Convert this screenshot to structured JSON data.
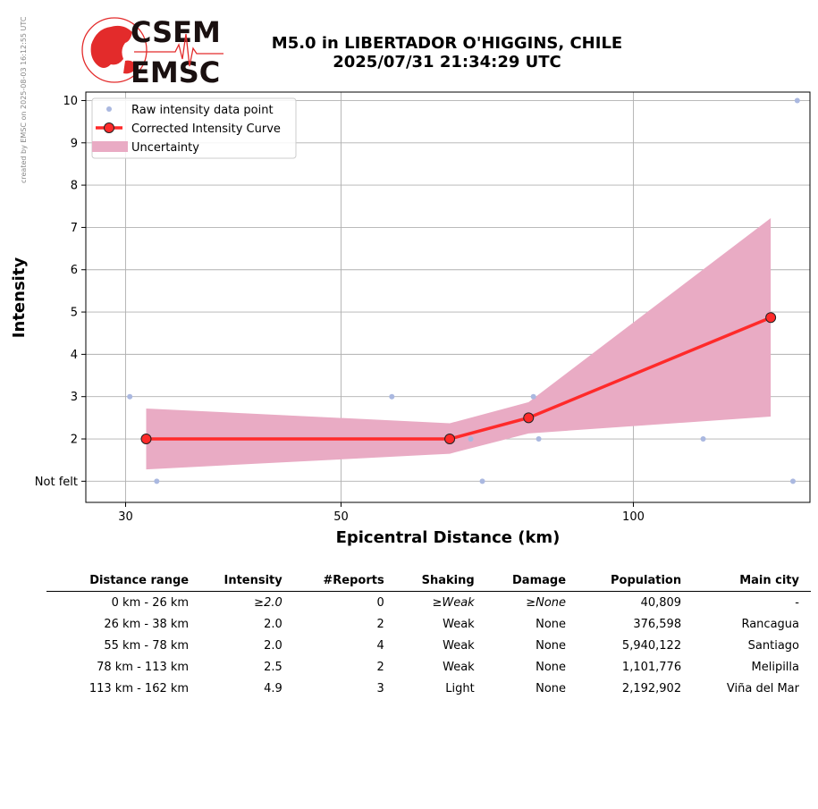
{
  "credit": "created by EMSC on 2025-08-03 16:12:55 UTC",
  "logo": {
    "top": "CSEM",
    "bottom": "EMSC",
    "accent": "#e32b2b"
  },
  "title": {
    "line1": "M5.0 in LIBERTADOR O'HIGGINS, CHILE",
    "line2": "2025/07/31 21:34:29 UTC"
  },
  "chart_data": {
    "type": "line",
    "xlabel": "Epicentral Distance (km)",
    "ylabel": "Intensity",
    "x_scale": "log",
    "xlim": [
      27.3,
      152
    ],
    "ylim": [
      0.5,
      10.2
    ],
    "x_ticks": [
      {
        "value": 30,
        "label": "30"
      },
      {
        "value": 50,
        "label": "50"
      },
      {
        "value": 100,
        "label": "100"
      }
    ],
    "y_ticks": [
      {
        "value": 1,
        "label": "Not felt"
      },
      {
        "value": 2,
        "label": "2"
      },
      {
        "value": 3,
        "label": "3"
      },
      {
        "value": 4,
        "label": "4"
      },
      {
        "value": 5,
        "label": "5"
      },
      {
        "value": 6,
        "label": "6"
      },
      {
        "value": 7,
        "label": "7"
      },
      {
        "value": 8,
        "label": "8"
      },
      {
        "value": 9,
        "label": "9"
      },
      {
        "value": 10,
        "label": "10"
      }
    ],
    "grid": true,
    "legend_position": "top-left",
    "legend": [
      {
        "label": "Raw intensity data point",
        "kind": "dot"
      },
      {
        "label": "Corrected Intensity Curve",
        "kind": "line"
      },
      {
        "label": "Uncertainty",
        "kind": "band"
      }
    ],
    "raw_points": {
      "name": "Raw intensity data point",
      "color": "#aab8e0",
      "points": [
        {
          "x": 30.3,
          "y": 3
        },
        {
          "x": 32.3,
          "y": 1
        },
        {
          "x": 56.4,
          "y": 3
        },
        {
          "x": 68.0,
          "y": 2
        },
        {
          "x": 69.9,
          "y": 1
        },
        {
          "x": 78.9,
          "y": 3
        },
        {
          "x": 79.9,
          "y": 2
        },
        {
          "x": 118,
          "y": 2
        },
        {
          "x": 146,
          "y": 1
        },
        {
          "x": 147.5,
          "y": 10
        },
        {
          "x": 153,
          "y": 2
        }
      ]
    },
    "curve": {
      "name": "Corrected Intensity Curve",
      "color": "#ff2a2a",
      "points": [
        {
          "x": 31.5,
          "y": 2.0
        },
        {
          "x": 64.7,
          "y": 2.0
        },
        {
          "x": 78.0,
          "y": 2.5
        },
        {
          "x": 138.5,
          "y": 4.87
        }
      ]
    },
    "uncertainty": {
      "name": "Uncertainty",
      "color": "#e9abc4",
      "x": [
        31.5,
        64.7,
        78.0,
        138.5
      ],
      "upper": [
        2.72,
        2.37,
        2.87,
        7.22
      ],
      "lower": [
        1.28,
        1.65,
        2.13,
        2.53
      ]
    }
  },
  "table": {
    "headers": [
      "Distance range",
      "Intensity",
      "#Reports",
      "Shaking",
      "Damage",
      "Population",
      "Main city"
    ],
    "rows": [
      {
        "distance": "0 km -   26 km",
        "intensity": "≥2.0",
        "reports": "0",
        "shaking": "≥Weak",
        "damage": "≥None",
        "population": "40,809",
        "city": "-",
        "italic": true
      },
      {
        "distance": "26 km -   38 km",
        "intensity": "2.0",
        "reports": "2",
        "shaking": "Weak",
        "damage": "None",
        "population": "376,598",
        "city": "Rancagua",
        "italic": false
      },
      {
        "distance": "55 km -   78 km",
        "intensity": "2.0",
        "reports": "4",
        "shaking": "Weak",
        "damage": "None",
        "population": "5,940,122",
        "city": "Santiago",
        "italic": false
      },
      {
        "distance": "78 km -  113 km",
        "intensity": "2.5",
        "reports": "2",
        "shaking": "Weak",
        "damage": "None",
        "population": "1,101,776",
        "city": "Melipilla",
        "italic": false
      },
      {
        "distance": "113 km -  162 km",
        "intensity": "4.9",
        "reports": "3",
        "shaking": "Light",
        "damage": "None",
        "population": "2,192,902",
        "city": "Viña del Mar",
        "italic": false
      }
    ]
  }
}
